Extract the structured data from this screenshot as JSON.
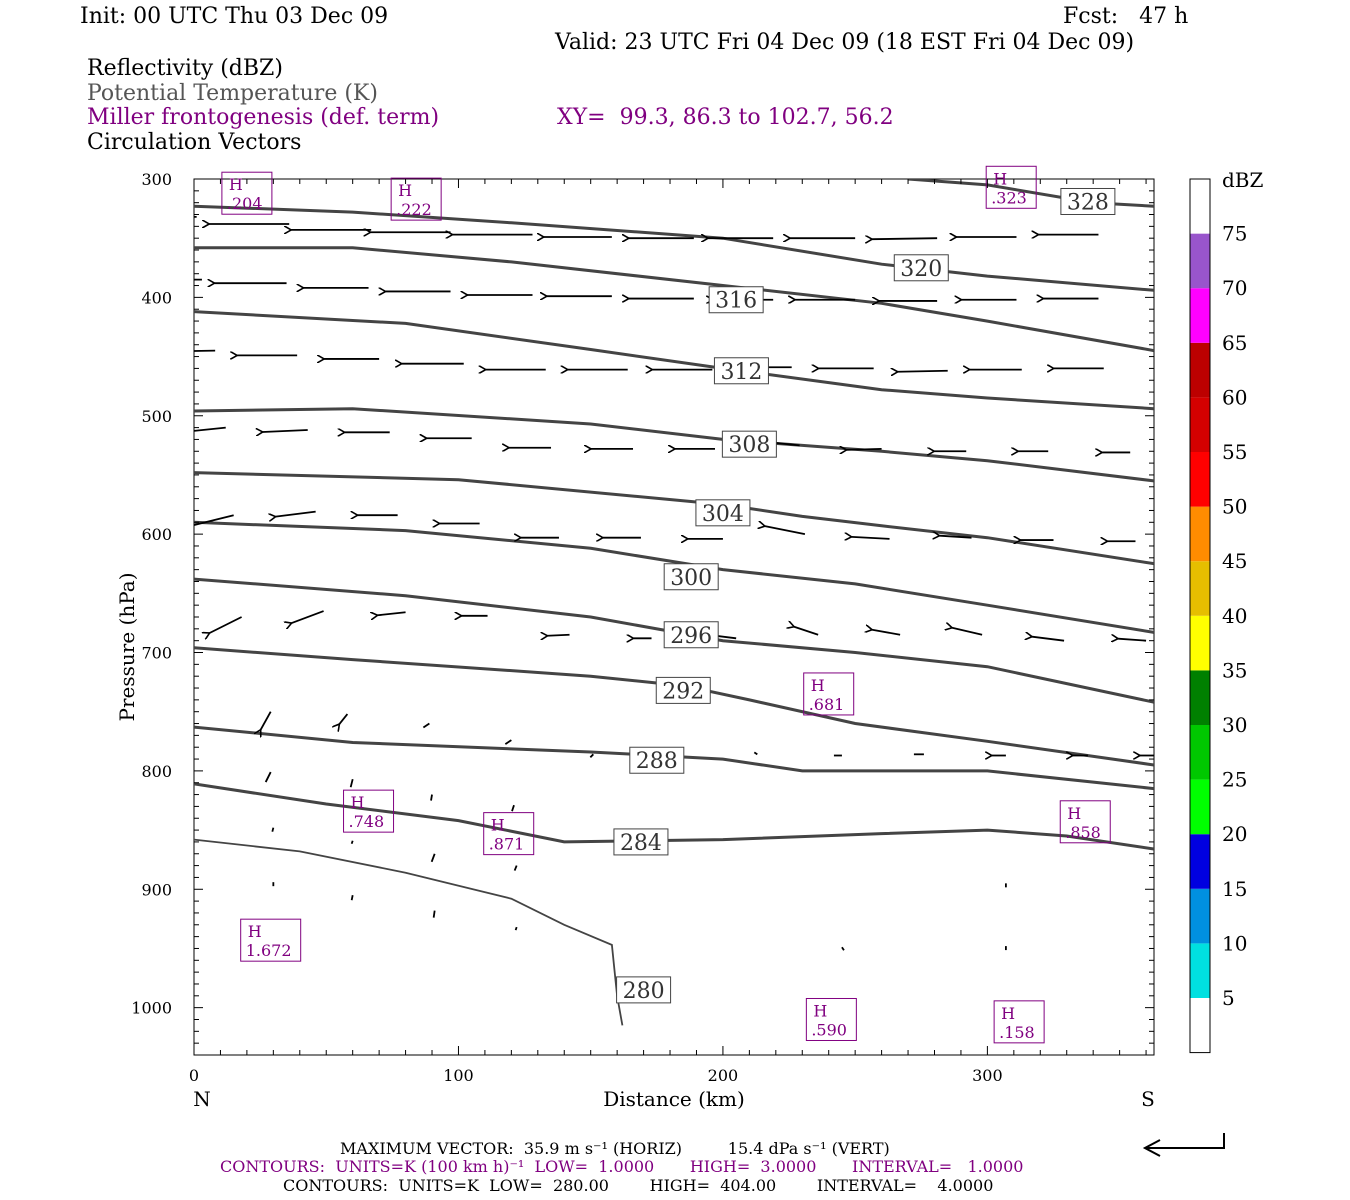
{
  "header": {
    "init": "Init: 00 UTC Thu 03 Dec 09",
    "fcst": "Fcst:   47 h",
    "valid": "Valid: 23 UTC Fri 04 Dec 09 (18 EST Fri 04 Dec 09)",
    "field1": "Reflectivity (dBZ)",
    "field2": "Potential Temperature (K)",
    "field3": "Miller frontogenesis (def. term)",
    "xy": "XY=  99.3, 86.3 to 102.7, 56.2",
    "field4": "Circulation Vectors"
  },
  "colors": {
    "isentrope": "#444444",
    "fronto": "#800080",
    "vector": "#000000"
  },
  "footer": {
    "max_vector": "MAXIMUM VECTOR:  35.9 m s⁻¹ (HORIZ)         15.4 dPa s⁻¹ (VERT)",
    "contours_fronto": "CONTOURS:  UNITS=K (100 km h)⁻¹  LOW=  1.0000       HIGH=  3.0000       INTERVAL=   1.0000",
    "contours_theta": "CONTOURS:  UNITS=K  LOW=  280.00        HIGH=  404.00        INTERVAL=    4.0000"
  },
  "chart_data": {
    "type": "cross-section",
    "xlabel": "Distance (km)",
    "ylabel": "Pressure (hPa)",
    "xlim": [
      0,
      363
    ],
    "ylim": [
      1040,
      300
    ],
    "x_ticks": [
      0,
      100,
      200,
      300
    ],
    "y_ticks": [
      300,
      400,
      500,
      600,
      700,
      800,
      900,
      1000
    ],
    "x_end_labels": {
      "left": "N",
      "right": "S"
    },
    "colorbar": {
      "unit": "dBZ",
      "ticks": [
        "5",
        "10",
        "15",
        "20",
        "25",
        "30",
        "35",
        "40",
        "45",
        "50",
        "55",
        "60",
        "65",
        "70",
        "75"
      ],
      "bins": [
        {
          "low": 0,
          "color": "#ffffff"
        },
        {
          "low": 5,
          "color": "#00e0e0"
        },
        {
          "low": 10,
          "color": "#0090e0"
        },
        {
          "low": 15,
          "color": "#0000e0"
        },
        {
          "low": 20,
          "color": "#00ff00"
        },
        {
          "low": 25,
          "color": "#00c800"
        },
        {
          "low": 30,
          "color": "#008000"
        },
        {
          "low": 35,
          "color": "#ffff00"
        },
        {
          "low": 40,
          "color": "#e6be00"
        },
        {
          "low": 45,
          "color": "#ff8c00"
        },
        {
          "low": 50,
          "color": "#ff0000"
        },
        {
          "low": 55,
          "color": "#d40000"
        },
        {
          "low": 60,
          "color": "#bc0000"
        },
        {
          "low": 65,
          "color": "#ff00ff"
        },
        {
          "low": 70,
          "color": "#9955cc"
        },
        {
          "low": 75,
          "color": "#ffffff"
        }
      ]
    },
    "isentropes": [
      {
        "value": 280,
        "label": "280",
        "label_at": [
          170,
          985
        ],
        "points": [
          [
            0,
            858
          ],
          [
            40,
            868
          ],
          [
            80,
            886
          ],
          [
            120,
            908
          ],
          [
            140,
            930
          ],
          [
            158,
            947
          ],
          [
            160,
            990
          ],
          [
            162,
            1015
          ]
        ]
      },
      {
        "value": 284,
        "label": "284",
        "label_at": [
          169,
          860
        ],
        "points": [
          [
            0,
            811
          ],
          [
            50,
            828
          ],
          [
            100,
            842
          ],
          [
            140,
            860
          ],
          [
            200,
            858
          ],
          [
            260,
            853
          ],
          [
            300,
            850
          ],
          [
            330,
            855
          ],
          [
            363,
            866
          ]
        ]
      },
      {
        "value": 288,
        "label": "288",
        "label_at": [
          175,
          791
        ],
        "points": [
          [
            0,
            763
          ],
          [
            60,
            776
          ],
          [
            150,
            784
          ],
          [
            200,
            790
          ],
          [
            230,
            800
          ],
          [
            260,
            800
          ],
          [
            300,
            800
          ],
          [
            363,
            815
          ]
        ]
      },
      {
        "value": 292,
        "label": "292",
        "label_at": [
          185,
          732
        ],
        "points": [
          [
            0,
            696
          ],
          [
            60,
            706
          ],
          [
            150,
            720
          ],
          [
            185,
            728
          ],
          [
            210,
            740
          ],
          [
            250,
            760
          ],
          [
            300,
            775
          ],
          [
            363,
            795
          ]
        ]
      },
      {
        "value": 296,
        "label": "296",
        "label_at": [
          188,
          685
        ],
        "points": [
          [
            0,
            638
          ],
          [
            80,
            652
          ],
          [
            150,
            670
          ],
          [
            200,
            690
          ],
          [
            250,
            700
          ],
          [
            300,
            712
          ],
          [
            363,
            742
          ]
        ]
      },
      {
        "value": 300,
        "label": "300",
        "label_at": [
          188,
          636
        ],
        "points": [
          [
            0,
            590
          ],
          [
            80,
            597
          ],
          [
            150,
            612
          ],
          [
            200,
            630
          ],
          [
            250,
            642
          ],
          [
            300,
            660
          ],
          [
            363,
            683
          ]
        ]
      },
      {
        "value": 304,
        "label": "304",
        "label_at": [
          200,
          582
        ],
        "points": [
          [
            0,
            548
          ],
          [
            100,
            554
          ],
          [
            200,
            575
          ],
          [
            230,
            585
          ],
          [
            260,
            593
          ],
          [
            300,
            603
          ],
          [
            363,
            625
          ]
        ]
      },
      {
        "value": 308,
        "label": "308",
        "label_at": [
          210,
          524
        ],
        "points": [
          [
            0,
            496
          ],
          [
            60,
            494
          ],
          [
            150,
            507
          ],
          [
            200,
            520
          ],
          [
            260,
            530
          ],
          [
            300,
            538
          ],
          [
            363,
            555
          ]
        ]
      },
      {
        "value": 312,
        "label": "312",
        "label_at": [
          207,
          462
        ],
        "points": [
          [
            0,
            412
          ],
          [
            80,
            422
          ],
          [
            150,
            444
          ],
          [
            200,
            460
          ],
          [
            260,
            478
          ],
          [
            300,
            485
          ],
          [
            363,
            494
          ]
        ]
      },
      {
        "value": 316,
        "label": "316",
        "label_at": [
          205,
          402
        ],
        "points": [
          [
            0,
            358
          ],
          [
            60,
            358
          ],
          [
            120,
            370
          ],
          [
            200,
            390
          ],
          [
            260,
            405
          ],
          [
            300,
            420
          ],
          [
            363,
            445
          ]
        ]
      },
      {
        "value": 320,
        "label": "320",
        "label_at": [
          275,
          375
        ],
        "points": [
          [
            0,
            323
          ],
          [
            60,
            328
          ],
          [
            120,
            337
          ],
          [
            200,
            350
          ],
          [
            260,
            372
          ],
          [
            300,
            382
          ],
          [
            363,
            394
          ]
        ]
      },
      {
        "value": 328,
        "label": "328",
        "label_at": [
          338,
          319
        ],
        "points": [
          [
            270,
            300
          ],
          [
            300,
            305
          ],
          [
            340,
            320
          ],
          [
            363,
            323
          ]
        ]
      }
    ],
    "fronto_maxima": [
      {
        "label": "H",
        "value": ".204",
        "x": 20,
        "p": 312
      },
      {
        "label": "H",
        "value": ".222",
        "x": 84,
        "p": 317
      },
      {
        "label": "H",
        "value": ".323",
        "x": 309,
        "p": 307
      },
      {
        "label": "H",
        "value": ".681",
        "x": 240,
        "p": 735
      },
      {
        "label": "H",
        "value": ".748",
        "x": 66,
        "p": 834
      },
      {
        "label": "H",
        "value": ".871",
        "x": 119,
        "p": 853
      },
      {
        "label": "H",
        "value": ".858",
        "x": 337,
        "p": 843
      },
      {
        "label": "H",
        "value": "1.672",
        "x": 29,
        "p": 943
      },
      {
        "label": "H",
        "value": ".590",
        "x": 241,
        "p": 1010
      },
      {
        "label": "H",
        "value": ".158",
        "x": 312,
        "p": 1012
      }
    ],
    "reference_vector": {
      "horiz_ms": 35.9,
      "vert_dPa_s": 15.4
    },
    "vectors": [
      {
        "x": 1,
        "p": 332,
        "dx": -80,
        "dy": 0
      },
      {
        "x": 36,
        "p": 338,
        "dx": -80,
        "dy": 0
      },
      {
        "x": 67,
        "p": 343,
        "dx": -80,
        "dy": 0
      },
      {
        "x": 97,
        "p": 345,
        "dx": -80,
        "dy": 0
      },
      {
        "x": 128,
        "p": 347,
        "dx": -80,
        "dy": 0
      },
      {
        "x": 158,
        "p": 349,
        "dx": -68,
        "dy": 0
      },
      {
        "x": 189,
        "p": 350,
        "dx": -65,
        "dy": 0
      },
      {
        "x": 219,
        "p": 350,
        "dx": -65,
        "dy": 0
      },
      {
        "x": 250,
        "p": 350,
        "dx": -65,
        "dy": 0
      },
      {
        "x": 281,
        "p": 350,
        "dx": -65,
        "dy": 1
      },
      {
        "x": 311,
        "p": 349,
        "dx": -60,
        "dy": 0
      },
      {
        "x": 342,
        "p": 347,
        "dx": -60,
        "dy": 0
      },
      {
        "x": 3,
        "p": 385,
        "dx": -72,
        "dy": 0
      },
      {
        "x": 35,
        "p": 388,
        "dx": -72,
        "dy": 0
      },
      {
        "x": 66,
        "p": 392,
        "dx": -65,
        "dy": 0
      },
      {
        "x": 97,
        "p": 395,
        "dx": -65,
        "dy": 0
      },
      {
        "x": 128,
        "p": 398,
        "dx": -65,
        "dy": 0
      },
      {
        "x": 158,
        "p": 399,
        "dx": -65,
        "dy": 0
      },
      {
        "x": 189,
        "p": 401,
        "dx": -65,
        "dy": 0
      },
      {
        "x": 219,
        "p": 402,
        "dx": -60,
        "dy": 0
      },
      {
        "x": 250,
        "p": 402,
        "dx": -60,
        "dy": 0
      },
      {
        "x": 281,
        "p": 403,
        "dx": -58,
        "dy": 0
      },
      {
        "x": 311,
        "p": 402,
        "dx": -55,
        "dy": 0
      },
      {
        "x": 342,
        "p": 401,
        "dx": -55,
        "dy": 0
      },
      {
        "x": 8,
        "p": 445,
        "dx": -60,
        "dy": 1
      },
      {
        "x": 39,
        "p": 449,
        "dx": -60,
        "dy": 0
      },
      {
        "x": 70,
        "p": 452,
        "dx": -55,
        "dy": 0
      },
      {
        "x": 102,
        "p": 456,
        "dx": -62,
        "dy": 0
      },
      {
        "x": 133,
        "p": 461,
        "dx": -60,
        "dy": 0
      },
      {
        "x": 164,
        "p": 461,
        "dx": -60,
        "dy": 0
      },
      {
        "x": 196,
        "p": 461,
        "dx": -60,
        "dy": 0
      },
      {
        "x": 226,
        "p": 459,
        "dx": -55,
        "dy": 0
      },
      {
        "x": 257,
        "p": 460,
        "dx": -55,
        "dy": 0
      },
      {
        "x": 285,
        "p": 462,
        "dx": -50,
        "dy": 1
      },
      {
        "x": 313,
        "p": 461,
        "dx": -52,
        "dy": 0
      },
      {
        "x": 344,
        "p": 460,
        "dx": -50,
        "dy": 0
      },
      {
        "x": 12,
        "p": 510,
        "dx": -48,
        "dy": 5
      },
      {
        "x": 43,
        "p": 512,
        "dx": -45,
        "dy": 2
      },
      {
        "x": 74,
        "p": 514,
        "dx": -45,
        "dy": 0
      },
      {
        "x": 105,
        "p": 519,
        "dx": -45,
        "dy": 0
      },
      {
        "x": 135,
        "p": 527,
        "dx": -42,
        "dy": 0
      },
      {
        "x": 166,
        "p": 528,
        "dx": -42,
        "dy": 0
      },
      {
        "x": 197,
        "p": 528,
        "dx": -40,
        "dy": 0
      },
      {
        "x": 229,
        "p": 525,
        "dx": -30,
        "dy": -3
      },
      {
        "x": 260,
        "p": 528,
        "dx": -35,
        "dy": 1
      },
      {
        "x": 292,
        "p": 530,
        "dx": -32,
        "dy": 0
      },
      {
        "x": 323,
        "p": 530,
        "dx": -30,
        "dy": 0
      },
      {
        "x": 354,
        "p": 531,
        "dx": -28,
        "dy": 0
      },
      {
        "x": 15,
        "p": 584,
        "dx": -40,
        "dy": 10
      },
      {
        "x": 46,
        "p": 581,
        "dx": -40,
        "dy": 5
      },
      {
        "x": 77,
        "p": 584,
        "dx": -40,
        "dy": 0
      },
      {
        "x": 108,
        "p": 591,
        "dx": -40,
        "dy": 0
      },
      {
        "x": 138,
        "p": 603,
        "dx": -38,
        "dy": 0
      },
      {
        "x": 169,
        "p": 603,
        "dx": -38,
        "dy": 0
      },
      {
        "x": 200,
        "p": 604,
        "dx": -35,
        "dy": 0
      },
      {
        "x": 231,
        "p": 600,
        "dx": -40,
        "dy": -8
      },
      {
        "x": 263,
        "p": 604,
        "dx": -38,
        "dy": -2
      },
      {
        "x": 294,
        "p": 603,
        "dx": -32,
        "dy": -2
      },
      {
        "x": 325,
        "p": 605,
        "dx": -33,
        "dy": 0
      },
      {
        "x": 356,
        "p": 606,
        "dx": -28,
        "dy": 0
      },
      {
        "x": 18,
        "p": 670,
        "dx": -32,
        "dy": 16
      },
      {
        "x": 49,
        "p": 665,
        "dx": -32,
        "dy": 12
      },
      {
        "x": 80,
        "p": 666,
        "dx": -28,
        "dy": 3
      },
      {
        "x": 111,
        "p": 669,
        "dx": -26,
        "dy": 0
      },
      {
        "x": 142,
        "p": 685,
        "dx": -22,
        "dy": 1
      },
      {
        "x": 173,
        "p": 688,
        "dx": -18,
        "dy": 0
      },
      {
        "x": 205,
        "p": 688,
        "dx": -24,
        "dy": -3
      },
      {
        "x": 236,
        "p": 685,
        "dx": -24,
        "dy": -8
      },
      {
        "x": 267,
        "p": 685,
        "dx": -28,
        "dy": -5
      },
      {
        "x": 298,
        "p": 685,
        "dx": -30,
        "dy": -7
      },
      {
        "x": 329,
        "p": 690,
        "dx": -32,
        "dy": -4
      },
      {
        "x": 360,
        "p": 690,
        "dx": -28,
        "dy": -2
      },
      {
        "x": 29,
        "p": 750,
        "dx": -10,
        "dy": 18
      },
      {
        "x": 58,
        "p": 752,
        "dx": -8,
        "dy": 10
      },
      {
        "x": 89,
        "p": 760,
        "dx": -6,
        "dy": 4
      },
      {
        "x": 120,
        "p": 774,
        "dx": -6,
        "dy": 4
      },
      {
        "x": 151,
        "p": 786,
        "dx": -3,
        "dy": 3
      },
      {
        "x": 182,
        "p": 794,
        "dx": -2,
        "dy": 2
      },
      {
        "x": 213,
        "p": 786,
        "dx": -3,
        "dy": -2
      },
      {
        "x": 245,
        "p": 787,
        "dx": -8,
        "dy": 0
      },
      {
        "x": 276,
        "p": 786,
        "dx": -10,
        "dy": 0
      },
      {
        "x": 307,
        "p": 787,
        "dx": -14,
        "dy": 0
      },
      {
        "x": 338,
        "p": 787,
        "dx": -15,
        "dy": 0
      },
      {
        "x": 363,
        "p": 787,
        "dx": -14,
        "dy": 0
      },
      {
        "x": 29,
        "p": 801,
        "dx": -5,
        "dy": 10
      },
      {
        "x": 60,
        "p": 807,
        "dx": -2,
        "dy": 8
      },
      {
        "x": 90,
        "p": 820,
        "dx": -1,
        "dy": 6
      },
      {
        "x": 121,
        "p": 829,
        "dx": -2,
        "dy": 6
      },
      {
        "x": 30,
        "p": 848,
        "dx": -1,
        "dy": 4
      },
      {
        "x": 60,
        "p": 859,
        "dx": -1,
        "dy": 3
      },
      {
        "x": 91,
        "p": 870,
        "dx": -3,
        "dy": 8
      },
      {
        "x": 122,
        "p": 880,
        "dx": -2,
        "dy": 5
      },
      {
        "x": 30,
        "p": 894,
        "dx": 0,
        "dy": 4
      },
      {
        "x": 60,
        "p": 905,
        "dx": -1,
        "dy": 5
      },
      {
        "x": 91,
        "p": 918,
        "dx": -1,
        "dy": 7
      },
      {
        "x": 122,
        "p": 932,
        "dx": -1,
        "dy": 3
      },
      {
        "x": 307,
        "p": 895,
        "dx": 0,
        "dy": 4
      },
      {
        "x": 307,
        "p": 948,
        "dx": 0,
        "dy": 4
      },
      {
        "x": 245,
        "p": 949,
        "dx": 2,
        "dy": 3
      }
    ]
  }
}
